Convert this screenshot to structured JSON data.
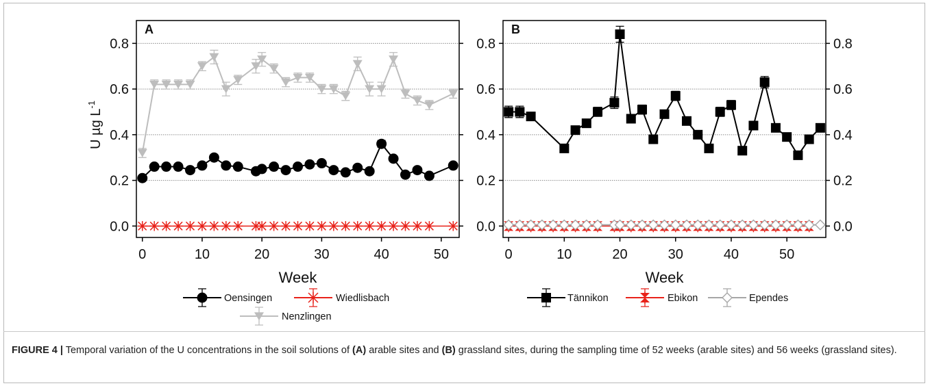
{
  "caption": {
    "figure_label": "FIGURE 4 |",
    "text_1": " Temporal variation of the U concentrations in the soil solutions of ",
    "bold_a": "(A)",
    "text_2": " arable sites and ",
    "bold_b": "(B)",
    "text_3": " grassland sites, during the sampling time of 52 weeks (arable sites) and 56 weeks (grassland sites)."
  },
  "chart_data": [
    {
      "type": "line",
      "panel_label": "A",
      "xlabel": "Week",
      "ylabel": "U µg L",
      "ylabel_superscript": "-1",
      "xlim": [
        -1,
        53
      ],
      "ylim": [
        -0.05,
        0.9
      ],
      "xticks": [
        0,
        10,
        20,
        30,
        40,
        50
      ],
      "yticks": [
        0.0,
        0.2,
        0.4,
        0.6,
        0.8
      ],
      "ytick_labels": [
        "0.0",
        "0.2",
        "0.4",
        "0.6",
        "0.8"
      ],
      "right_axis_tick_labels": false,
      "grid": "horizontal dotted",
      "legend_placement": "bottom",
      "series": [
        {
          "name": "Oensingen",
          "marker": "circle",
          "color": "#000000",
          "x": [
            0,
            2,
            4,
            6,
            8,
            10,
            12,
            14,
            16,
            19,
            20,
            22,
            24,
            26,
            28,
            30,
            32,
            34,
            36,
            38,
            40,
            42,
            44,
            46,
            48,
            52
          ],
          "y": [
            0.21,
            0.26,
            0.26,
            0.26,
            0.245,
            0.265,
            0.3,
            0.265,
            0.26,
            0.24,
            0.25,
            0.26,
            0.245,
            0.26,
            0.27,
            0.275,
            0.245,
            0.235,
            0.255,
            0.24,
            0.36,
            0.295,
            0.225,
            0.245,
            0.22,
            0.265
          ],
          "err": [
            0.008,
            0.008,
            0.008,
            0.008,
            0.008,
            0.008,
            0.01,
            0.008,
            0.008,
            0.008,
            0.008,
            0.008,
            0.008,
            0.008,
            0.008,
            0.008,
            0.008,
            0.008,
            0.008,
            0.008,
            0.015,
            0.01,
            0.008,
            0.008,
            0.008,
            0.01
          ]
        },
        {
          "name": "Wiedlisbach",
          "marker": "asterisk",
          "color": "#e8221a",
          "x": [
            0,
            2,
            4,
            6,
            8,
            10,
            12,
            14,
            16,
            19,
            20,
            22,
            24,
            26,
            28,
            30,
            32,
            34,
            36,
            38,
            40,
            42,
            44,
            46,
            48,
            52
          ],
          "y": [
            0,
            0,
            0,
            0,
            0,
            0,
            0,
            0,
            0,
            0,
            0,
            0,
            0,
            0,
            0,
            0,
            0,
            0,
            0,
            0,
            0,
            0,
            0,
            0,
            0,
            0
          ],
          "err": []
        },
        {
          "name": "Nenzlingen",
          "marker": "triangle-down",
          "color": "#bdbdbd",
          "x": [
            0,
            2,
            4,
            6,
            8,
            10,
            12,
            14,
            16,
            19,
            20,
            22,
            24,
            26,
            28,
            30,
            32,
            34,
            36,
            38,
            40,
            42,
            44,
            46,
            48,
            52
          ],
          "y": [
            0.32,
            0.62,
            0.62,
            0.62,
            0.62,
            0.7,
            0.74,
            0.6,
            0.64,
            0.7,
            0.73,
            0.69,
            0.63,
            0.65,
            0.65,
            0.6,
            0.6,
            0.57,
            0.71,
            0.6,
            0.6,
            0.73,
            0.58,
            0.55,
            0.53,
            0.58
          ],
          "err": [
            0.02,
            0.02,
            0.02,
            0.02,
            0.02,
            0.02,
            0.03,
            0.03,
            0.02,
            0.03,
            0.03,
            0.02,
            0.02,
            0.02,
            0.02,
            0.02,
            0.02,
            0.02,
            0.03,
            0.03,
            0.03,
            0.03,
            0.02,
            0.02,
            0.02,
            0.02
          ]
        }
      ]
    },
    {
      "type": "line",
      "panel_label": "B",
      "xlabel": "Week",
      "xlim": [
        -1,
        57
      ],
      "ylim": [
        -0.05,
        0.9
      ],
      "xticks": [
        0,
        10,
        20,
        30,
        40,
        50
      ],
      "yticks": [
        0.0,
        0.2,
        0.4,
        0.6,
        0.8
      ],
      "ytick_labels": [
        "0.0",
        "0.2",
        "0.4",
        "0.6",
        "0.8"
      ],
      "right_axis_tick_labels": true,
      "grid": "horizontal dotted",
      "legend_placement": "bottom",
      "series": [
        {
          "name": "Tännikon",
          "marker": "square",
          "color": "#000000",
          "x": [
            0,
            2,
            4,
            10,
            12,
            14,
            16,
            19,
            20,
            22,
            24,
            26,
            28,
            30,
            32,
            34,
            36,
            38,
            40,
            42,
            44,
            46,
            48,
            50,
            52,
            54,
            56
          ],
          "y": [
            0.5,
            0.5,
            0.48,
            0.34,
            0.42,
            0.45,
            0.5,
            0.54,
            0.84,
            0.47,
            0.51,
            0.38,
            0.49,
            0.57,
            0.46,
            0.4,
            0.34,
            0.5,
            0.53,
            0.33,
            0.44,
            0.63,
            0.43,
            0.39,
            0.31,
            0.38,
            0.43
          ],
          "err": [
            0.025,
            0.025,
            0.01,
            0.01,
            0.01,
            0.01,
            0.02,
            0.025,
            0.035,
            0.01,
            0.02,
            0.01,
            0.01,
            0.02,
            0.01,
            0.01,
            0.01,
            0.02,
            0.02,
            0.01,
            0.01,
            0.025,
            0.01,
            0.01,
            0.01,
            0.01,
            0.01
          ]
        },
        {
          "name": "Ebikon",
          "marker": "hourglass",
          "color": "#e8221a",
          "x": [
            0,
            2,
            4,
            6,
            8,
            10,
            12,
            14,
            16,
            19,
            20,
            22,
            24,
            26,
            28,
            30,
            32,
            34,
            36,
            38,
            40,
            42,
            44,
            46,
            48,
            50,
            52,
            54
          ],
          "y": [
            0,
            0,
            0,
            0,
            0,
            0,
            0,
            0,
            0,
            0,
            0,
            0,
            0,
            0,
            0,
            0,
            0,
            0,
            0,
            0,
            0,
            0,
            0,
            0,
            0,
            0,
            0,
            0
          ],
          "err": []
        },
        {
          "name": "Ependes",
          "marker": "diamond",
          "color": "#a6a6a6",
          "x": [
            0,
            2,
            4,
            6,
            8,
            10,
            12,
            14,
            16,
            19,
            20,
            22,
            24,
            26,
            28,
            30,
            32,
            34,
            36,
            38,
            40,
            42,
            44,
            46,
            48,
            50,
            52,
            54,
            56
          ],
          "y": [
            0.005,
            0.005,
            0.005,
            0.005,
            0.005,
            0.005,
            0.005,
            0.005,
            0.005,
            0.005,
            0.005,
            0.005,
            0.005,
            0.005,
            0.005,
            0.005,
            0.005,
            0.005,
            0.005,
            0.005,
            0.005,
            0.005,
            0.005,
            0.005,
            0.005,
            0.005,
            0.005,
            0.005,
            0.005
          ],
          "err": []
        }
      ]
    }
  ]
}
